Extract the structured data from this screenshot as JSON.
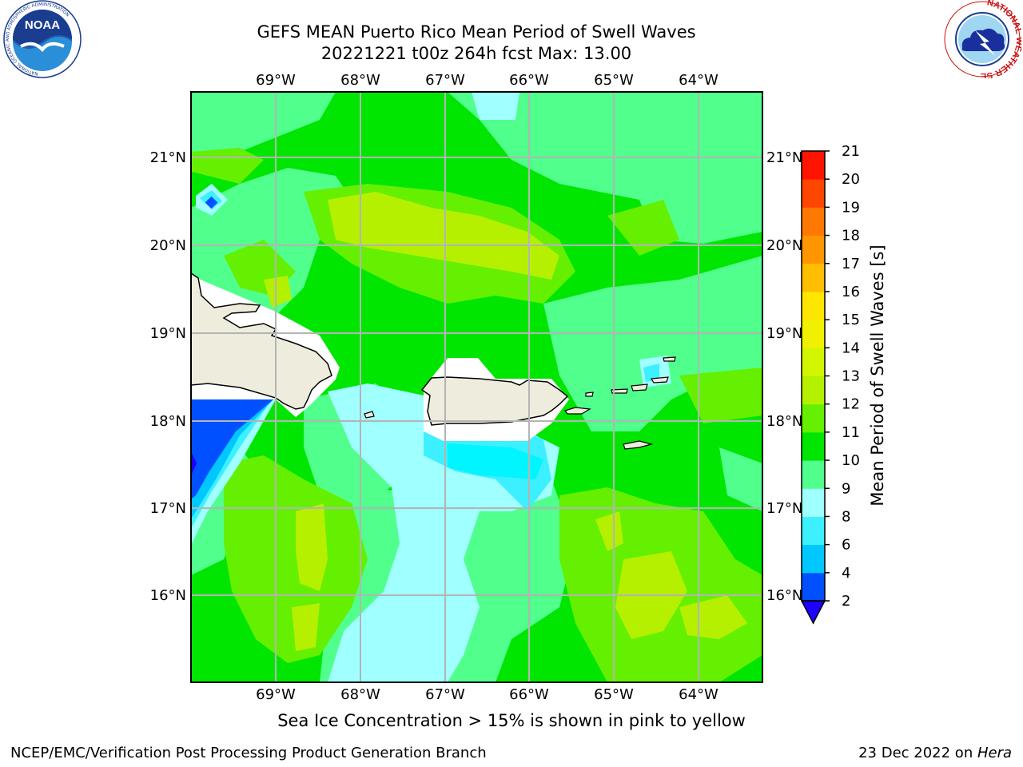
{
  "header": {
    "title_line1": "GEFS MEAN Puerto Rico Mean Period of Swell Waves",
    "title_line2": "20221221 t00z 264h fcst   Max: 13.00"
  },
  "map": {
    "lon_ticks": [
      "69°W",
      "68°W",
      "67°W",
      "66°W",
      "65°W",
      "64°W"
    ],
    "lat_ticks": [
      "21°N",
      "20°N",
      "19°N",
      "18°N",
      "17°N",
      "16°N"
    ],
    "land_color": "#eeecdc",
    "mask_color": "#ffffff",
    "grid_color": "#b4b4b4"
  },
  "colorbar": {
    "label": "Mean Period of Swell Waves [s]",
    "ticks": [
      "2",
      "4",
      "6",
      "8",
      "9",
      "10",
      "11",
      "12",
      "13",
      "14",
      "15",
      "16",
      "17",
      "18",
      "19",
      "20",
      "21"
    ],
    "colors": [
      "#0050ff",
      "#00c8ff",
      "#3cf0ff",
      "#a0ffff",
      "#50ff8c",
      "#00e600",
      "#64f000",
      "#b4f000",
      "#d2f500",
      "#f0f000",
      "#ffe600",
      "#ffbe00",
      "#ff9600",
      "#ff7800",
      "#ff4600",
      "#ff1400"
    ],
    "under_color": "#1e00ff"
  },
  "caption": "Sea Ice Concentration > 15% is shown in pink to yellow",
  "footer": {
    "left": "NCEP/EMC/Verification Post Processing Product Generation Branch",
    "date": "23 Dec 2022 on ",
    "host": "Hera"
  },
  "logos": {
    "noaa_text": "NOAA",
    "noaa_ring": "NATIONAL OCEANIC AND ATMOSPHERIC ADMINISTRATION",
    "noaa_ring_bottom": "U.S. DEPARTMENT OF COMMERCE",
    "nws_ring": "NATIONAL WEATHER SERVICE"
  }
}
